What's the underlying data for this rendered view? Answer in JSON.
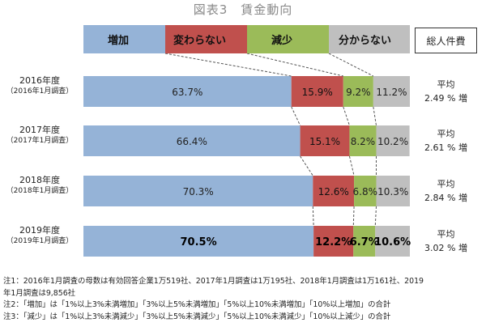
{
  "title": "図表3　賃金動向",
  "chart_data": {
    "type": "bar",
    "orientation": "horizontal",
    "stacked": "100%",
    "categories": [
      "増加",
      "変わらない",
      "減少",
      "分からない"
    ],
    "colors": [
      "#95b3d7",
      "#c0504d",
      "#9bbb59",
      "#bfbfbf"
    ],
    "rows": [
      {
        "label": "2016年度",
        "sub": "（2016年1月調査）",
        "values": [
          63.7,
          15.9,
          9.2,
          11.2
        ],
        "labels": [
          "63.7%",
          "15.9%",
          "9.2%",
          "11.2%"
        ],
        "bold": false,
        "avg_line1": "平均",
        "avg_line2": "2.49 % 増"
      },
      {
        "label": "2017年度",
        "sub": "（2017年1月調査）",
        "values": [
          66.4,
          15.1,
          8.2,
          10.2
        ],
        "labels": [
          "66.4%",
          "15.1%",
          "8.2%",
          "10.2%"
        ],
        "bold": false,
        "avg_line1": "平均",
        "avg_line2": "2.61 % 増"
      },
      {
        "label": "2018年度",
        "sub": "（2018年1月調査）",
        "values": [
          70.3,
          12.6,
          6.8,
          10.3
        ],
        "labels": [
          "70.3%",
          "12.6%",
          "6.8%",
          "10.3%"
        ],
        "bold": false,
        "avg_line1": "平均",
        "avg_line2": "2.84 % 増"
      },
      {
        "label": "2019年度",
        "sub": "（2019年1月調査）",
        "values": [
          70.5,
          12.2,
          6.7,
          10.6
        ],
        "labels": [
          "70.5%",
          "12.2%",
          "6.7%",
          "10.6%"
        ],
        "bold": true,
        "avg_line1": "平均",
        "avg_line2": "3.02 % 増"
      }
    ],
    "legend_right": "総人件費",
    "grid": false
  },
  "notes": [
    "注1：2016年1月調査の母数は有効回答企業1万519社、2017年1月調査は1万195社、2018年1月調査は1万161社、2019",
    "年1月調査は9,856社",
    "注2：「増加」は「1%以上3%未満増加」「3%以上5%未満増加」「5%以上10%未満増加」「10%以上増加」の合計",
    "注3：「減少」は「1%以上3%未満減少」「3%以上5%未満減少」「5%以上10%未満減少」「10%以上減少」の合計"
  ]
}
